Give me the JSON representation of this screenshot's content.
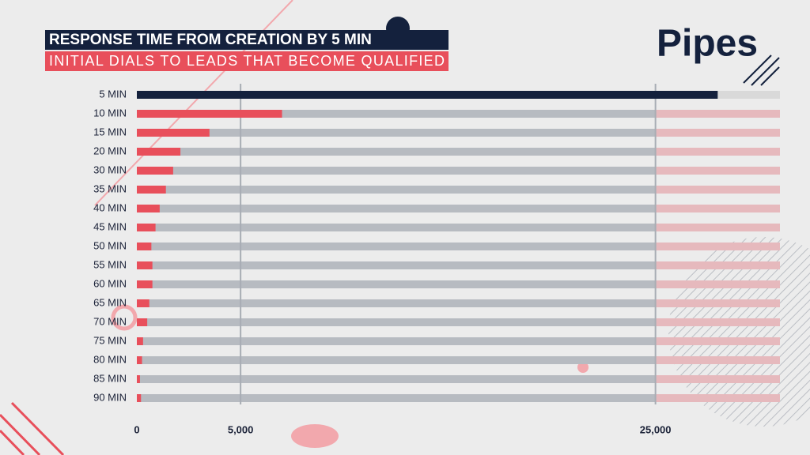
{
  "chart_data": {
    "type": "bar",
    "orientation": "horizontal",
    "title": "RESPONSE TIME FROM CREATION BY 5 MIN",
    "subtitle": "INITIAL DIALS TO LEADS THAT BECOME QUALIFIED",
    "brand": "Pipes",
    "categories": [
      "5 MIN",
      "10 MIN",
      "15 MIN",
      "20 MIN",
      "30 MIN",
      "35 MIN",
      "40 MIN",
      "45 MIN",
      "50 MIN",
      "55 MIN",
      "60 MIN",
      "65 MIN",
      "70 MIN",
      "75 MIN",
      "80 MIN",
      "85 MIN",
      "90 MIN"
    ],
    "values": [
      28000,
      7000,
      3500,
      2100,
      1750,
      1400,
      1100,
      900,
      700,
      750,
      750,
      600,
      500,
      300,
      250,
      150,
      200
    ],
    "colors": [
      "#14213d",
      "#e84f5b",
      "#e84f5b",
      "#e84f5b",
      "#e84f5b",
      "#e84f5b",
      "#e84f5b",
      "#e84f5b",
      "#e84f5b",
      "#e84f5b",
      "#e84f5b",
      "#e84f5b",
      "#e84f5b",
      "#e84f5b",
      "#e84f5b",
      "#e84f5b",
      "#e84f5b"
    ],
    "xlim": [
      0,
      31000
    ],
    "xticks": [
      0,
      {
        "value": 5000,
        "label": "5,000"
      },
      {
        "value": 25000,
        "label": "25,000"
      }
    ],
    "grid": true
  }
}
